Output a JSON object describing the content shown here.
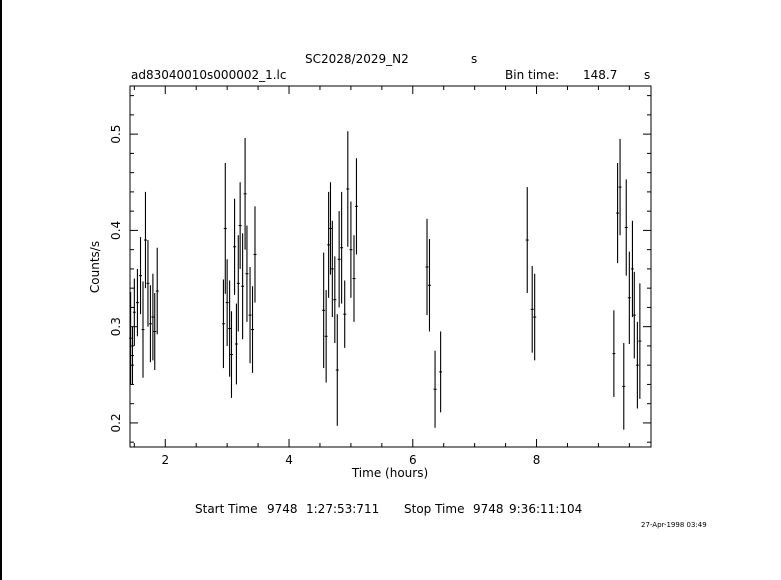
{
  "header": {
    "title": "SC2028/2029_N2",
    "title_unit": "s",
    "filename": "ad83040010s000002_1.lc",
    "bin_label": "Bin time:",
    "bin_value": "148.7",
    "bin_unit": "s"
  },
  "footer": {
    "start_label": "Start Time",
    "start_day": "9748",
    "start_time": "1:27:53:711",
    "stop_label": "Stop Time",
    "stop_day": "9748",
    "stop_time": "9:36:11:104",
    "date_stamp": "27-Apr-1998 03:49"
  },
  "chart_data": {
    "type": "scatter",
    "title": "SC2028/2029_N2",
    "xlabel": "Time (hours)",
    "ylabel": "Counts/s",
    "xlim": [
      1.43,
      9.85
    ],
    "ylim": [
      0.175,
      0.55
    ],
    "x_ticks": [
      2,
      4,
      6,
      8
    ],
    "x_tick_labels": [
      "2",
      "4",
      "6",
      "8"
    ],
    "y_ticks": [
      0.2,
      0.3,
      0.4,
      0.5
    ],
    "y_tick_labels": [
      "0.2",
      "0.3",
      "0.4",
      "0.5"
    ],
    "grid": false,
    "series": [
      {
        "error_bars": true,
        "points": [
          {
            "x": 1.44,
            "y": 0.288,
            "err": 0.048
          },
          {
            "x": 1.47,
            "y": 0.27,
            "err": 0.03
          },
          {
            "x": 1.5,
            "y": 0.315,
            "err": 0.035
          },
          {
            "x": 1.55,
            "y": 0.325,
            "err": 0.035
          },
          {
            "x": 1.6,
            "y": 0.353,
            "err": 0.04
          },
          {
            "x": 1.64,
            "y": 0.297,
            "err": 0.05
          },
          {
            "x": 1.68,
            "y": 0.39,
            "err": 0.05
          },
          {
            "x": 1.72,
            "y": 0.345,
            "err": 0.045
          },
          {
            "x": 1.76,
            "y": 0.303,
            "err": 0.04
          },
          {
            "x": 1.8,
            "y": 0.31,
            "err": 0.045
          },
          {
            "x": 1.83,
            "y": 0.295,
            "err": 0.04
          },
          {
            "x": 1.87,
            "y": 0.337,
            "err": 0.045
          },
          {
            "x": 2.94,
            "y": 0.303,
            "err": 0.046
          },
          {
            "x": 2.97,
            "y": 0.402,
            "err": 0.068
          },
          {
            "x": 3.0,
            "y": 0.325,
            "err": 0.045
          },
          {
            "x": 3.04,
            "y": 0.298,
            "err": 0.05
          },
          {
            "x": 3.07,
            "y": 0.271,
            "err": 0.045
          },
          {
            "x": 3.12,
            "y": 0.383,
            "err": 0.05
          },
          {
            "x": 3.15,
            "y": 0.282,
            "err": 0.042
          },
          {
            "x": 3.18,
            "y": 0.345,
            "err": 0.05
          },
          {
            "x": 3.21,
            "y": 0.405,
            "err": 0.045
          },
          {
            "x": 3.25,
            "y": 0.342,
            "err": 0.055
          },
          {
            "x": 3.29,
            "y": 0.438,
            "err": 0.058
          },
          {
            "x": 3.32,
            "y": 0.355,
            "err": 0.05
          },
          {
            "x": 3.37,
            "y": 0.312,
            "err": 0.05
          },
          {
            "x": 3.41,
            "y": 0.297,
            "err": 0.045
          },
          {
            "x": 3.45,
            "y": 0.375,
            "err": 0.05
          },
          {
            "x": 4.56,
            "y": 0.317,
            "err": 0.06
          },
          {
            "x": 4.6,
            "y": 0.29,
            "err": 0.048
          },
          {
            "x": 4.64,
            "y": 0.385,
            "err": 0.055
          },
          {
            "x": 4.67,
            "y": 0.402,
            "err": 0.048
          },
          {
            "x": 4.7,
            "y": 0.36,
            "err": 0.05
          },
          {
            "x": 4.74,
            "y": 0.328,
            "err": 0.045
          },
          {
            "x": 4.78,
            "y": 0.255,
            "err": 0.058
          },
          {
            "x": 4.81,
            "y": 0.37,
            "err": 0.05
          },
          {
            "x": 4.85,
            "y": 0.382,
            "err": 0.058
          },
          {
            "x": 4.9,
            "y": 0.313,
            "err": 0.035
          },
          {
            "x": 4.95,
            "y": 0.443,
            "err": 0.06
          },
          {
            "x": 5.0,
            "y": 0.38,
            "err": 0.05
          },
          {
            "x": 5.05,
            "y": 0.35,
            "err": 0.045
          },
          {
            "x": 5.09,
            "y": 0.425,
            "err": 0.05
          },
          {
            "x": 6.23,
            "y": 0.362,
            "err": 0.05
          },
          {
            "x": 6.27,
            "y": 0.343,
            "err": 0.048
          },
          {
            "x": 6.36,
            "y": 0.235,
            "err": 0.04
          },
          {
            "x": 6.45,
            "y": 0.253,
            "err": 0.042
          },
          {
            "x": 7.85,
            "y": 0.39,
            "err": 0.055
          },
          {
            "x": 7.93,
            "y": 0.318,
            "err": 0.045
          },
          {
            "x": 7.97,
            "y": 0.31,
            "err": 0.045
          },
          {
            "x": 9.25,
            "y": 0.272,
            "err": 0.045
          },
          {
            "x": 9.31,
            "y": 0.418,
            "err": 0.052
          },
          {
            "x": 9.35,
            "y": 0.445,
            "err": 0.05
          },
          {
            "x": 9.41,
            "y": 0.238,
            "err": 0.045
          },
          {
            "x": 9.45,
            "y": 0.403,
            "err": 0.05
          },
          {
            "x": 9.5,
            "y": 0.33,
            "err": 0.048
          },
          {
            "x": 9.55,
            "y": 0.36,
            "err": 0.05
          },
          {
            "x": 9.58,
            "y": 0.312,
            "err": 0.045
          },
          {
            "x": 9.63,
            "y": 0.26,
            "err": 0.045
          },
          {
            "x": 9.67,
            "y": 0.285,
            "err": 0.06
          }
        ]
      }
    ]
  }
}
